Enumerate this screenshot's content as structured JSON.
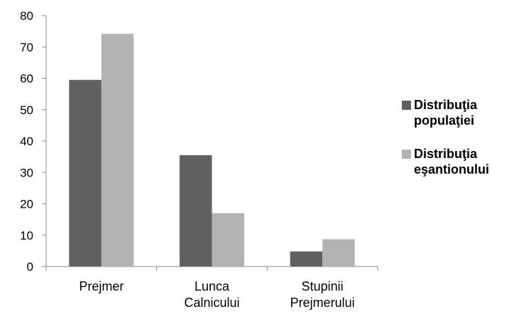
{
  "chart_data": {
    "type": "bar",
    "categories": [
      [
        "Prejmer"
      ],
      [
        "Lunca",
        "Calnicului"
      ],
      [
        "Stupinii",
        "Prejmerului"
      ]
    ],
    "series": [
      {
        "name": [
          "Distribuţia",
          "populaţiei"
        ],
        "values": [
          59.5,
          35.5,
          4.8
        ],
        "color": "#606060"
      },
      {
        "name": [
          "Distribuţia",
          "eşantionului"
        ],
        "values": [
          74.2,
          17.0,
          8.7
        ],
        "color": "#b3b3b3"
      }
    ],
    "ylim": [
      0,
      80
    ],
    "yticks": [
      0,
      10,
      20,
      30,
      40,
      50,
      60,
      70,
      80
    ],
    "grid": false,
    "legend_position": "right"
  }
}
